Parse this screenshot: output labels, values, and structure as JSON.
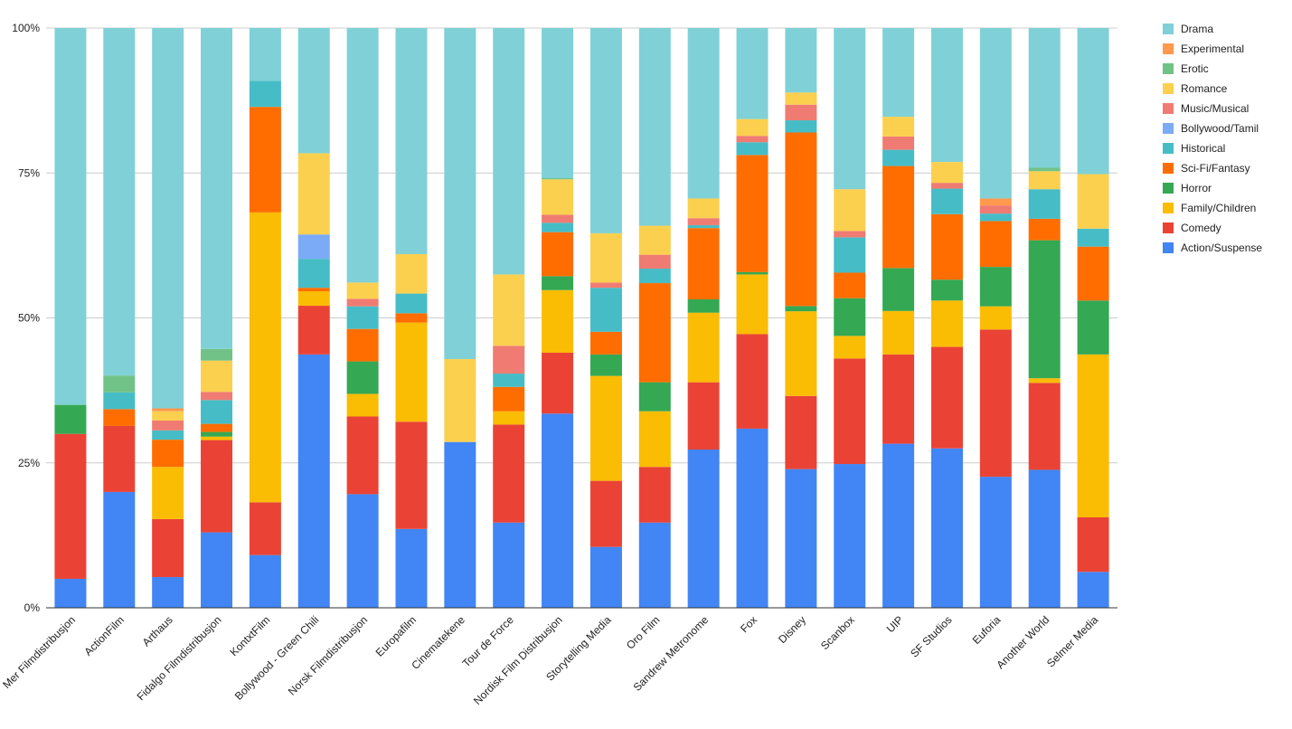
{
  "chart_data": {
    "type": "bar",
    "stacked": "percent",
    "title": "",
    "xlabel": "",
    "ylabel": "",
    "ylim": [
      0,
      100
    ],
    "y_ticks": [
      "0%",
      "25%",
      "50%",
      "75%",
      "100%"
    ],
    "y_tick_values": [
      0,
      25,
      50,
      75,
      100
    ],
    "grid": true,
    "legend_position": "right",
    "categories": [
      "Mer Filmdistribusjon",
      "ActionFilm",
      "Arthaus",
      "Fidalgo Filmdistribusjon",
      "KontxtFilm",
      "Bollywood - Green Chili",
      "Norsk Filmdistribusjon",
      "Europafilm",
      "Cinematekene",
      "Tour de Force",
      "Nordisk Film Distribusjon",
      "Storytelling Media",
      "Oro Film",
      "Sandrew Metronome",
      "Fox",
      "Disney",
      "Scanbox",
      "UIP",
      "SF Studios",
      "Euforia",
      "Another World",
      "Selmer Media"
    ],
    "series": [
      {
        "name": "Action/Suspense",
        "color": "#4285f4",
        "values": [
          5.0,
          20.0,
          5.3,
          13.0,
          9.1,
          43.7,
          19.6,
          13.6,
          28.6,
          14.7,
          33.5,
          10.5,
          14.7,
          27.3,
          30.9,
          23.9,
          24.8,
          28.3,
          27.5,
          22.6,
          23.8,
          6.2
        ]
      },
      {
        "name": "Comedy",
        "color": "#ea4335",
        "values": [
          25.0,
          11.4,
          10.0,
          15.9,
          9.1,
          8.4,
          13.4,
          18.5,
          0,
          16.9,
          10.5,
          11.4,
          9.6,
          11.6,
          16.3,
          12.6,
          18.2,
          15.4,
          17.5,
          25.4,
          15.0,
          9.4
        ]
      },
      {
        "name": "Family/Children",
        "color": "#fbbc04",
        "values": [
          0,
          0,
          9.0,
          0.6,
          50.0,
          2.5,
          3.9,
          17.1,
          0,
          2.3,
          10.8,
          18.1,
          9.6,
          12.0,
          10.3,
          14.6,
          3.9,
          7.5,
          8.0,
          4.0,
          0.8,
          28.1
        ]
      },
      {
        "name": "Horror",
        "color": "#34a853",
        "values": [
          5.0,
          0,
          0,
          0.8,
          0,
          0,
          5.6,
          0,
          0,
          0,
          2.4,
          3.7,
          5.0,
          2.3,
          0.4,
          0.9,
          6.5,
          7.4,
          3.6,
          6.8,
          23.8,
          9.3
        ]
      },
      {
        "name": "Sci-Fi/Fantasy",
        "color": "#ff6d01",
        "values": [
          0,
          2.9,
          4.7,
          1.4,
          18.2,
          0.6,
          5.6,
          1.6,
          0,
          4.2,
          7.6,
          3.9,
          17.1,
          12.3,
          20.2,
          29.9,
          4.4,
          17.6,
          11.3,
          7.9,
          3.7,
          9.3
        ]
      },
      {
        "name": "Historical",
        "color": "#46bdc6",
        "values": [
          0,
          2.9,
          1.6,
          4.1,
          4.5,
          5.0,
          3.9,
          3.4,
          0,
          2.3,
          1.6,
          7.6,
          2.5,
          0.5,
          2.2,
          2.1,
          6.1,
          2.8,
          4.4,
          1.3,
          5.1,
          3.1
        ]
      },
      {
        "name": "Bollywood/Tamil",
        "color": "#7baaf7",
        "values": [
          0,
          0,
          0,
          0,
          0,
          4.2,
          0,
          0,
          0,
          0,
          0,
          0,
          0,
          0,
          0,
          0,
          0,
          0,
          0,
          0,
          0,
          0
        ]
      },
      {
        "name": "Music/Musical",
        "color": "#f07b72",
        "values": [
          0,
          0,
          1.7,
          1.4,
          0,
          0,
          1.3,
          0,
          0,
          4.8,
          1.4,
          0.9,
          2.4,
          1.2,
          1.1,
          2.7,
          1.1,
          2.3,
          1.0,
          1.4,
          0,
          0
        ]
      },
      {
        "name": "Romance",
        "color": "#fcd04f",
        "values": [
          0,
          0,
          1.6,
          5.4,
          0,
          14.0,
          2.8,
          6.8,
          14.3,
          12.3,
          6.1,
          8.5,
          5.0,
          3.4,
          2.9,
          2.1,
          7.2,
          3.4,
          3.6,
          0,
          3.1,
          9.4
        ]
      },
      {
        "name": "Erotic",
        "color": "#71c287",
        "values": [
          0,
          2.9,
          0,
          2.0,
          0,
          0,
          0,
          0,
          0,
          0,
          0.2,
          0,
          0,
          0,
          0,
          0,
          0,
          0,
          0,
          0,
          0.6,
          0
        ]
      },
      {
        "name": "Experimental",
        "color": "#ff994d",
        "values": [
          0,
          0,
          0.5,
          0,
          0,
          0,
          0,
          0,
          0,
          0,
          0,
          0,
          0,
          0,
          0,
          0,
          0,
          0,
          0,
          1.2,
          0,
          0
        ]
      },
      {
        "name": "Drama",
        "color": "#7fd1d7",
        "values": [
          65.0,
          60.0,
          65.6,
          55.3,
          9.1,
          21.6,
          43.9,
          39.0,
          57.1,
          42.5,
          25.9,
          35.4,
          34.1,
          29.4,
          15.7,
          11.1,
          27.8,
          15.3,
          23.1,
          29.4,
          24.1,
          25.2
        ]
      }
    ],
    "legend_order": [
      "Drama",
      "Experimental",
      "Erotic",
      "Romance",
      "Music/Musical",
      "Bollywood/Tamil",
      "Historical",
      "Sci-Fi/Fantasy",
      "Horror",
      "Family/Children",
      "Comedy",
      "Action/Suspense"
    ]
  }
}
